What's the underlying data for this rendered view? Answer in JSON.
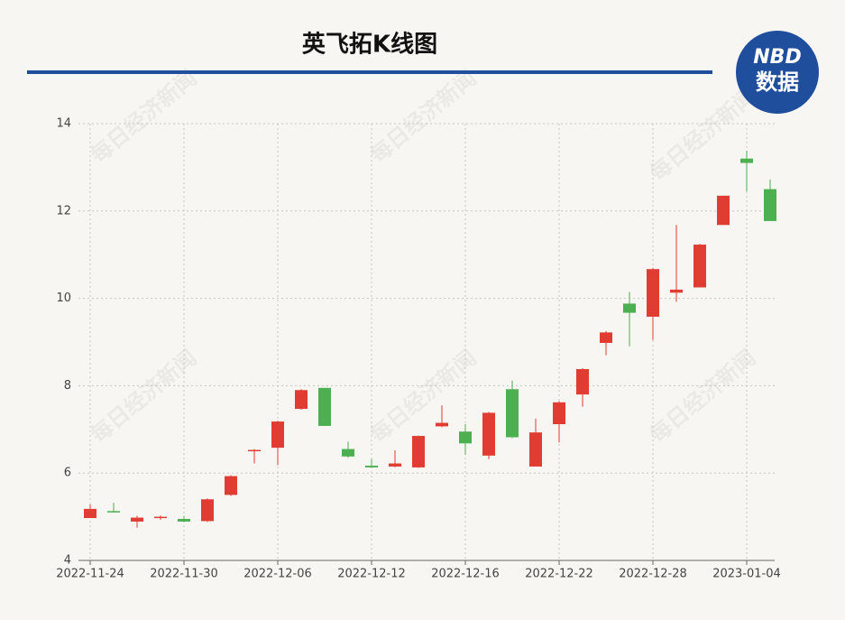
{
  "chart_data": {
    "type": "candlestick",
    "title": "英飞拓K线图",
    "logo": {
      "top": "NBD",
      "bottom": "数据"
    },
    "watermark": "每日经济新闻",
    "categories": [
      "2022-11-24",
      null,
      null,
      null,
      "2022-11-30",
      null,
      null,
      null,
      "2022-12-06",
      null,
      null,
      null,
      "2022-12-12",
      null,
      null,
      null,
      "2022-12-16",
      null,
      null,
      null,
      "2022-12-22",
      null,
      null,
      null,
      "2022-12-28",
      null,
      null,
      null,
      "2023-01-04",
      null
    ],
    "open": [
      4.97,
      5.13,
      4.89,
      4.97,
      4.95,
      4.9,
      5.5,
      6.5,
      6.58,
      7.47,
      7.95,
      6.55,
      6.17,
      6.15,
      6.13,
      7.07,
      6.95,
      6.4,
      7.92,
      6.15,
      7.12,
      7.8,
      8.98,
      9.88,
      9.58,
      10.13,
      10.25,
      11.68,
      13.2,
      12.5
    ],
    "high": [
      5.28,
      5.32,
      5.02,
      5.03,
      5.02,
      5.42,
      5.95,
      6.55,
      7.2,
      7.92,
      7.95,
      6.72,
      6.32,
      6.52,
      6.86,
      7.55,
      7.12,
      7.4,
      8.12,
      7.25,
      7.65,
      8.4,
      9.25,
      10.15,
      10.7,
      11.68,
      11.25,
      12.35,
      13.38,
      12.72
    ],
    "low": [
      4.97,
      5.1,
      4.75,
      4.93,
      4.88,
      4.88,
      5.48,
      6.22,
      6.18,
      7.45,
      7.08,
      6.35,
      6.12,
      6.13,
      6.12,
      7.05,
      6.42,
      6.32,
      6.8,
      6.15,
      6.7,
      7.52,
      8.7,
      8.9,
      9.05,
      9.92,
      10.25,
      11.68,
      12.45,
      11.77
    ],
    "close": [
      5.18,
      5.1,
      4.98,
      5.0,
      4.89,
      5.4,
      5.93,
      6.53,
      7.18,
      7.9,
      7.08,
      6.38,
      6.13,
      6.22,
      6.85,
      7.15,
      6.68,
      7.38,
      6.82,
      6.93,
      7.62,
      8.38,
      9.22,
      9.67,
      10.67,
      10.2,
      11.23,
      12.35,
      13.1,
      11.77
    ],
    "up_color": "#e03c31",
    "down_color": "#4caf50",
    "ylim": [
      4,
      14
    ],
    "yticks": [
      4,
      6,
      8,
      10,
      12,
      14
    ],
    "grid": true
  }
}
